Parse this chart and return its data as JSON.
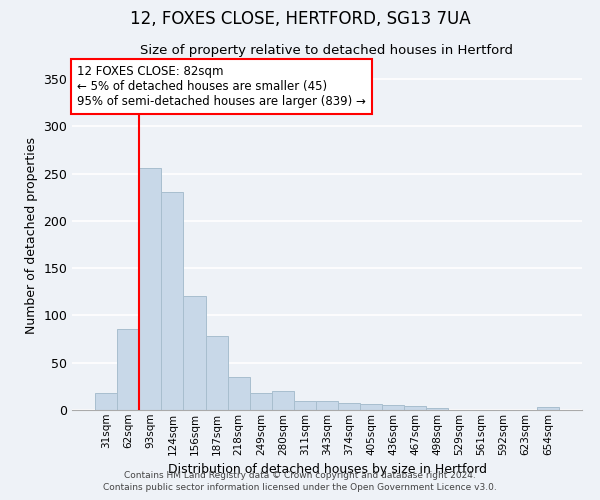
{
  "title": "12, FOXES CLOSE, HERTFORD, SG13 7UA",
  "subtitle": "Size of property relative to detached houses in Hertford",
  "xlabel": "Distribution of detached houses by size in Hertford",
  "ylabel": "Number of detached properties",
  "bar_color": "#c8d8e8",
  "bar_edge_color": "#a8bece",
  "categories": [
    "31sqm",
    "62sqm",
    "93sqm",
    "124sqm",
    "156sqm",
    "187sqm",
    "218sqm",
    "249sqm",
    "280sqm",
    "311sqm",
    "343sqm",
    "374sqm",
    "405sqm",
    "436sqm",
    "467sqm",
    "498sqm",
    "529sqm",
    "561sqm",
    "592sqm",
    "623sqm",
    "654sqm"
  ],
  "values": [
    18,
    86,
    256,
    230,
    120,
    78,
    35,
    18,
    20,
    10,
    9,
    7,
    6,
    5,
    4,
    2,
    0,
    0,
    0,
    0,
    3
  ],
  "ylim": [
    0,
    370
  ],
  "yticks": [
    0,
    50,
    100,
    150,
    200,
    250,
    300,
    350
  ],
  "vline_x": 1.5,
  "annotation_lines": [
    "12 FOXES CLOSE: 82sqm",
    "← 5% of detached houses are smaller (45)",
    "95% of semi-detached houses are larger (839) →"
  ],
  "footer_line1": "Contains HM Land Registry data © Crown copyright and database right 2024.",
  "footer_line2": "Contains public sector information licensed under the Open Government Licence v3.0.",
  "background_color": "#eef2f7",
  "grid_color": "#ffffff"
}
